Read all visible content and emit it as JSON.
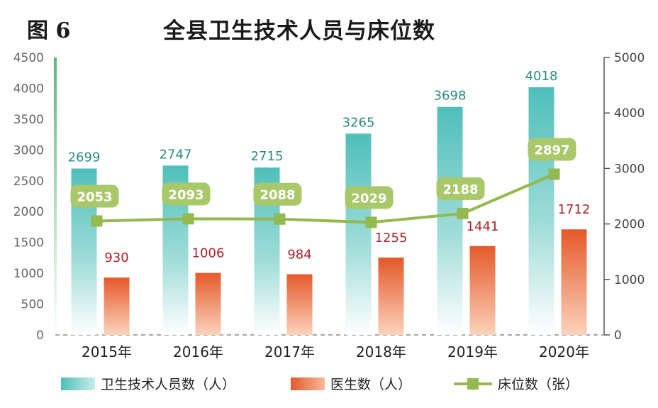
{
  "figure_label": "图 6",
  "chart_data": {
    "type": "bar",
    "title": "全县卫生技术人员与床位数",
    "categories": [
      "2015年",
      "2016年",
      "2017年",
      "2018年",
      "2019年",
      "2020年"
    ],
    "series": [
      {
        "name": "卫生技术人员数（人）",
        "type": "bar",
        "axis": "left",
        "values": [
          2699,
          2747,
          2715,
          3265,
          3698,
          4018
        ]
      },
      {
        "name": "医生数（人）",
        "type": "bar",
        "axis": "left",
        "values": [
          930,
          1006,
          984,
          1255,
          1441,
          1712
        ]
      },
      {
        "name": "床位数（张）",
        "type": "line",
        "axis": "right",
        "values": [
          2053,
          2093,
          2088,
          2029,
          2188,
          2897
        ]
      }
    ],
    "left_axis": {
      "min": 0,
      "max": 4500,
      "ticks": [
        0,
        500,
        1000,
        1500,
        2000,
        2500,
        3000,
        3500,
        4000,
        4500
      ]
    },
    "right_axis": {
      "min": 0,
      "max": 5000,
      "ticks": [
        0,
        1000,
        2000,
        3000,
        4000,
        5000
      ]
    },
    "legend_position": "bottom",
    "colors": {
      "tech": "#5cc4c0",
      "doctor": "#e8622f",
      "bed": "#93b94f"
    }
  }
}
